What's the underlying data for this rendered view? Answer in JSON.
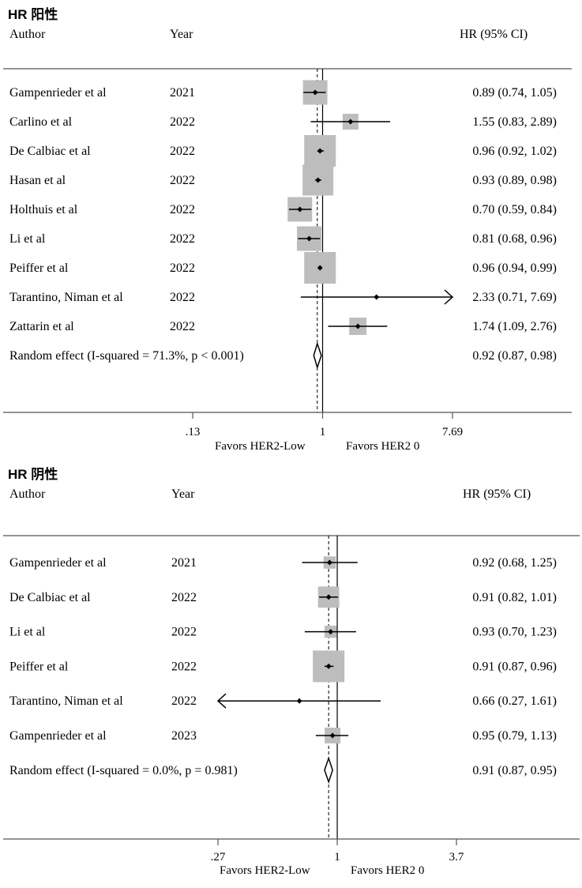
{
  "colors": {
    "box": "#bdbdbd",
    "line": "#000000",
    "axis": "#555555",
    "background": "#ffffff"
  },
  "chart_data": [
    {
      "type": "forest",
      "title": "HR 阳性",
      "headers": {
        "author": "Author",
        "year": "Year",
        "estimate": "HR (95% CI)"
      },
      "axis": {
        "scale": "log",
        "range": [
          0.13,
          7.69
        ],
        "ticks": [
          ".13",
          "1",
          "7.69"
        ],
        "tick_values": [
          0.13,
          1,
          7.69
        ]
      },
      "favors": {
        "left": "Favors HER2-Low",
        "right": "Favors HER2 0"
      },
      "null_line": 1,
      "overall_line": 0.92,
      "studies": [
        {
          "author": "Gampenrieder et al",
          "year": "2021",
          "hr": 0.89,
          "lo": 0.74,
          "hi": 1.05,
          "label": "0.89 (0.74, 1.05)",
          "weight": 0.6
        },
        {
          "author": "Carlino et al",
          "year": "2022",
          "hr": 1.55,
          "lo": 0.83,
          "hi": 2.89,
          "label": "1.55 (0.83, 2.89)",
          "weight": 0.25
        },
        {
          "author": "De Calbiac et al",
          "year": "2022",
          "hr": 0.96,
          "lo": 0.92,
          "hi": 1.02,
          "label": "0.96 (0.92, 1.02)",
          "weight": 1.0
        },
        {
          "author": "Hasan et al",
          "year": "2022",
          "hr": 0.93,
          "lo": 0.89,
          "hi": 0.98,
          "label": "0.93 (0.89, 0.98)",
          "weight": 0.95
        },
        {
          "author": "Holthuis et al",
          "year": "2022",
          "hr": 0.7,
          "lo": 0.59,
          "hi": 0.84,
          "label": "0.70 (0.59, 0.84)",
          "weight": 0.6
        },
        {
          "author": "Li et al",
          "year": "2022",
          "hr": 0.81,
          "lo": 0.68,
          "hi": 0.96,
          "label": "0.81 (0.68, 0.96)",
          "weight": 0.6
        },
        {
          "author": "Peiffer et al",
          "year": "2022",
          "hr": 0.96,
          "lo": 0.94,
          "hi": 0.99,
          "label": "0.96 (0.94, 0.99)",
          "weight": 1.0
        },
        {
          "author": "Tarantino, Niman et al",
          "year": "2022",
          "hr": 2.33,
          "lo": 0.71,
          "hi": 7.69,
          "label": "2.33 (0.71, 7.69)",
          "weight": 0.0,
          "arrow_right": true
        },
        {
          "author": "Zattarin et al",
          "year": "2022",
          "hr": 1.74,
          "lo": 1.09,
          "hi": 2.76,
          "label": "1.74 (1.09, 2.76)",
          "weight": 0.3
        }
      ],
      "summary": {
        "label_text": "Random effect (I-squared = 71.3%, p < 0.001)",
        "hr": 0.92,
        "lo": 0.87,
        "hi": 0.98,
        "label": "0.92 (0.87, 0.98)"
      }
    },
    {
      "type": "forest",
      "title": "HR 阴性",
      "headers": {
        "author": "Author",
        "year": "Year",
        "estimate": "HR (95% CI)"
      },
      "axis": {
        "scale": "log",
        "range": [
          0.27,
          3.7
        ],
        "ticks": [
          ".27",
          "1",
          "3.7"
        ],
        "tick_values": [
          0.27,
          1,
          3.7
        ]
      },
      "favors": {
        "left": "Favors HER2-Low",
        "right": "Favors HER2 0"
      },
      "null_line": 1,
      "overall_line": 0.91,
      "studies": [
        {
          "author": "Gampenrieder et al",
          "year": "2021",
          "hr": 0.92,
          "lo": 0.68,
          "hi": 1.25,
          "label": "0.92 (0.68, 1.25)",
          "weight": 0.15
        },
        {
          "author": "De Calbiac et al",
          "year": "2022",
          "hr": 0.91,
          "lo": 0.82,
          "hi": 1.01,
          "label": "0.91 (0.82, 1.01)",
          "weight": 0.45
        },
        {
          "author": "Li et al",
          "year": "2022",
          "hr": 0.93,
          "lo": 0.7,
          "hi": 1.23,
          "label": "0.93 (0.70, 1.23)",
          "weight": 0.15
        },
        {
          "author": "Peiffer et al",
          "year": "2022",
          "hr": 0.91,
          "lo": 0.87,
          "hi": 0.96,
          "label": "0.91 (0.87, 0.96)",
          "weight": 1.0
        },
        {
          "author": "Tarantino, Niman et al",
          "year": "2022",
          "hr": 0.66,
          "lo": 0.27,
          "hi": 1.61,
          "label": "0.66 (0.27, 1.61)",
          "weight": 0.0,
          "arrow_left": true
        },
        {
          "author": "Gampenrieder et al",
          "year": "2023",
          "hr": 0.95,
          "lo": 0.79,
          "hi": 1.13,
          "label": "0.95 (0.79, 1.13)",
          "weight": 0.25
        }
      ],
      "summary": {
        "label_text": "Random effect (I-squared = 0.0%, p = 0.981)",
        "hr": 0.91,
        "lo": 0.87,
        "hi": 0.95,
        "label": "0.91 (0.87, 0.95)"
      }
    }
  ]
}
